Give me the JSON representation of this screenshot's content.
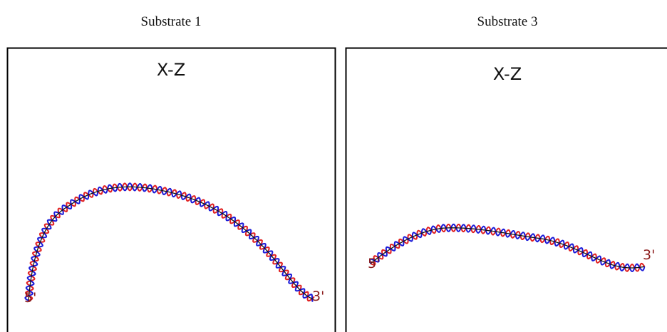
{
  "panels": [
    {
      "title": "Substrate 1",
      "plot_label": "X-Z",
      "end_5": "5'",
      "end_3": "3'"
    },
    {
      "title": "Substrate 3",
      "plot_label": "X-Z",
      "end_5": "5'",
      "end_3": "3'"
    }
  ]
}
